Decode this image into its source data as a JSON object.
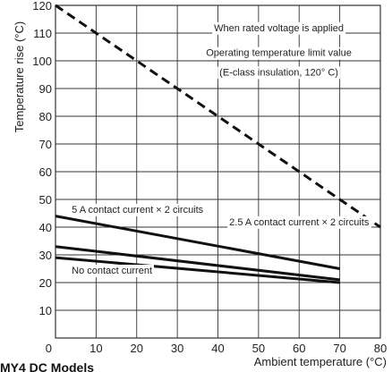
{
  "chart_data": {
    "type": "line",
    "xlabel": "Ambient temperature (°C)",
    "ylabel": "Temperature rise (°C)",
    "xlim": [
      0,
      80
    ],
    "ylim": [
      0,
      120
    ],
    "xticks": [
      0,
      10,
      20,
      30,
      40,
      50,
      60,
      70,
      80
    ],
    "yticks": [
      10,
      20,
      30,
      40,
      50,
      60,
      70,
      80,
      90,
      100,
      110,
      120
    ],
    "grid": true,
    "series": [
      {
        "style": "dashed",
        "x": [
          0,
          80
        ],
        "y": [
          120,
          40
        ]
      },
      {
        "style": "solid",
        "x": [
          0,
          70
        ],
        "y": [
          44,
          25
        ]
      },
      {
        "style": "solid",
        "x": [
          0,
          70
        ],
        "y": [
          33,
          21
        ]
      },
      {
        "style": "solid",
        "x": [
          0,
          70
        ],
        "y": [
          29,
          20
        ]
      }
    ],
    "annotations": [
      {
        "text": "When rated voltage is applied",
        "x": 55,
        "y": 112
      },
      {
        "text": "Operating temperature limit value",
        "x": 55,
        "y": 103
      },
      {
        "text": "(E-class insulation, 120° C)",
        "x": 55,
        "y": 96
      },
      {
        "text": "5 A contact current × 2 circuits",
        "x": 4,
        "y": 46.5
      },
      {
        "text": "2.5 A contact current × 2 circuits",
        "x": 60,
        "y": 42
      },
      {
        "text": "No contact current",
        "x": 4,
        "y": 24.5
      }
    ]
  },
  "footer_text": "MY4 DC Models"
}
